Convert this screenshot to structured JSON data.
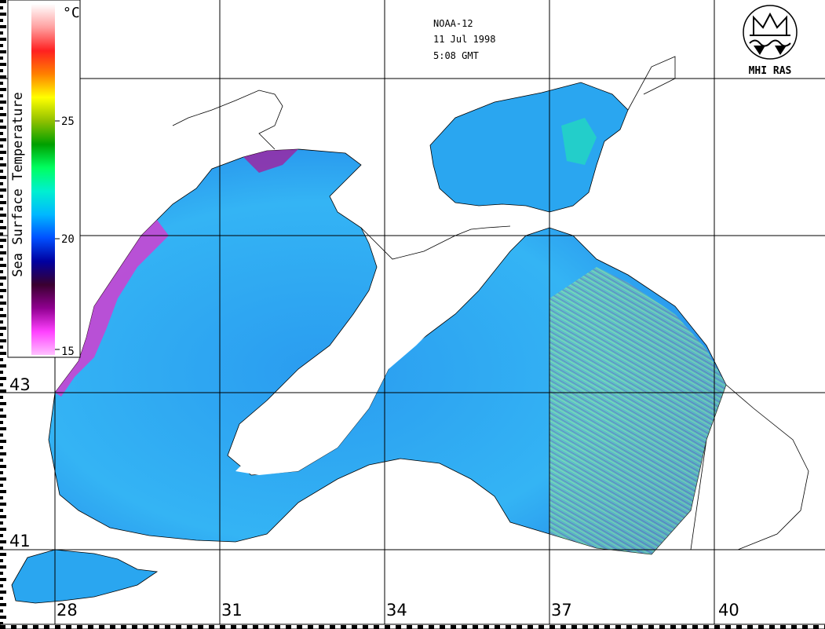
{
  "header": {
    "satellite": "NOAA-12",
    "date": "11 Jul 1998",
    "time": "5:08 GMT"
  },
  "logo": {
    "label": "MHI RAS"
  },
  "colorbar": {
    "title": "Sea Surface Temperature",
    "unit": "°C",
    "ticks": [
      "15",
      "20",
      "25"
    ],
    "stops": [
      {
        "value": 15,
        "color": "#ffc0ff"
      },
      {
        "value": 16,
        "color": "#ff40ff"
      },
      {
        "value": 17,
        "color": "#900090"
      },
      {
        "value": 18,
        "color": "#3a0030"
      },
      {
        "value": 19,
        "color": "#0000a0"
      },
      {
        "value": 20,
        "color": "#0050ff"
      },
      {
        "value": 21,
        "color": "#00b8ff"
      },
      {
        "value": 22,
        "color": "#00f0d0"
      },
      {
        "value": 23,
        "color": "#00ff60"
      },
      {
        "value": 24,
        "color": "#00a000"
      },
      {
        "value": 25,
        "color": "#90c000"
      },
      {
        "value": 26,
        "color": "#ffff00"
      },
      {
        "value": 27,
        "color": "#ff8000"
      },
      {
        "value": 28,
        "color": "#ff2020"
      },
      {
        "value": 29,
        "color": "#ffa0a0"
      },
      {
        "value": 30,
        "color": "#ffffff"
      }
    ]
  },
  "grid": {
    "lat_labels": [
      "43",
      "41"
    ],
    "lon_labels": [
      "28",
      "31",
      "34",
      "37",
      "40"
    ]
  }
}
